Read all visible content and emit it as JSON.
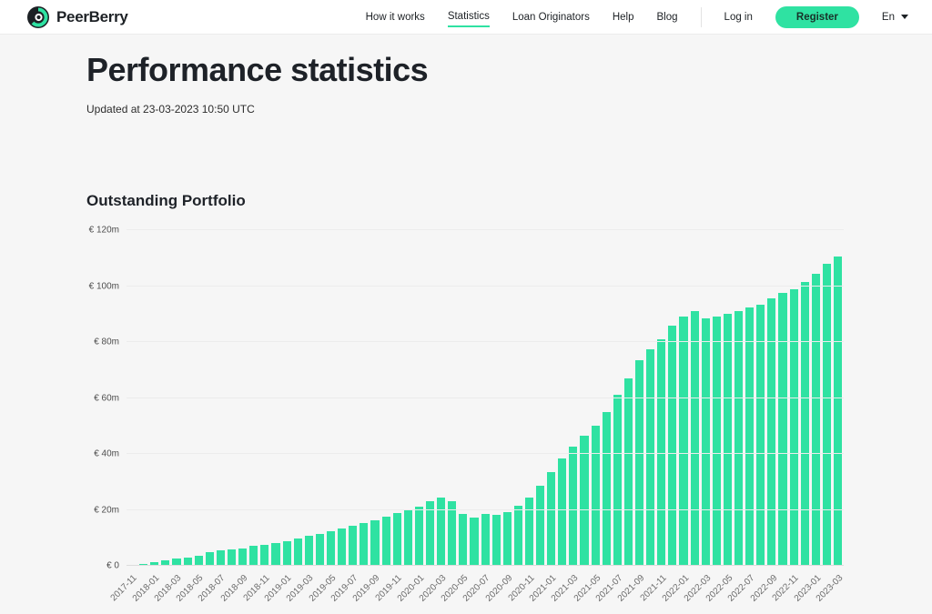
{
  "theme": {
    "accent": "#2fe2a2",
    "bar_color": "#2fe2a2",
    "header_bg": "#ffffff",
    "page_bg": "#f6f6f6",
    "text_dark": "#1d2125"
  },
  "header": {
    "brand": "PeerBerry",
    "nav": [
      {
        "label": "How it works",
        "active": false
      },
      {
        "label": "Statistics",
        "active": true
      },
      {
        "label": "Loan Originators",
        "active": false
      },
      {
        "label": "Help",
        "active": false
      },
      {
        "label": "Blog",
        "active": false
      }
    ],
    "login_label": "Log in",
    "register_label": "Register",
    "language": "En"
  },
  "page": {
    "title": "Performance statistics",
    "updated": "Updated at 23-03-2023 10:50 UTC"
  },
  "chart_data": {
    "type": "bar",
    "title": "Outstanding Portfolio",
    "ylabel": "",
    "xlabel": "",
    "ylim": [
      0,
      120
    ],
    "grid": true,
    "legend_position": "none",
    "yticks": [
      0,
      20,
      40,
      60,
      80,
      100,
      120
    ],
    "ytick_labels": [
      "€ 0",
      "€ 20m",
      "€ 40m",
      "€ 60m",
      "€ 80m",
      "€ 100m",
      "€ 120m"
    ],
    "xtick_every": 2,
    "x": [
      "2017-11",
      "2017-12",
      "2018-01",
      "2018-02",
      "2018-03",
      "2018-04",
      "2018-05",
      "2018-06",
      "2018-07",
      "2018-08",
      "2018-09",
      "2018-10",
      "2018-11",
      "2018-12",
      "2019-01",
      "2019-02",
      "2019-03",
      "2019-04",
      "2019-05",
      "2019-06",
      "2019-07",
      "2019-08",
      "2019-09",
      "2019-10",
      "2019-11",
      "2019-12",
      "2020-01",
      "2020-02",
      "2020-03",
      "2020-04",
      "2020-05",
      "2020-06",
      "2020-07",
      "2020-08",
      "2020-09",
      "2020-10",
      "2020-11",
      "2020-12",
      "2021-01",
      "2021-02",
      "2021-03",
      "2021-04",
      "2021-05",
      "2021-06",
      "2021-07",
      "2021-08",
      "2021-09",
      "2021-10",
      "2021-11",
      "2021-12",
      "2022-01",
      "2022-02",
      "2022-03",
      "2022-04",
      "2022-05",
      "2022-06",
      "2022-07",
      "2022-08",
      "2022-09",
      "2022-10",
      "2022-11",
      "2022-12",
      "2023-01",
      "2023-02",
      "2023-03"
    ],
    "values": [
      0.4,
      0.8,
      1.4,
      2.0,
      2.5,
      2.9,
      3.5,
      4.8,
      5.5,
      6.0,
      6.3,
      7.0,
      7.5,
      8.0,
      8.7,
      9.8,
      10.8,
      11.5,
      12.3,
      13.2,
      14.3,
      15.4,
      16.2,
      17.5,
      18.8,
      20.0,
      21.0,
      23.0,
      24.5,
      23.0,
      18.5,
      17.2,
      18.7,
      18.2,
      19.3,
      21.5,
      24.5,
      28.5,
      33.5,
      38.5,
      42.5,
      46.5,
      50.0,
      55.0,
      61.0,
      67.0,
      73.5,
      77.5,
      81.0,
      86.0,
      89.0,
      91.0,
      88.5,
      89.0,
      90.0,
      91.0,
      92.5,
      93.5,
      95.5,
      97.5,
      99.0,
      101.5,
      104.5,
      108.0,
      110.5
    ],
    "value_unit": "€m"
  }
}
